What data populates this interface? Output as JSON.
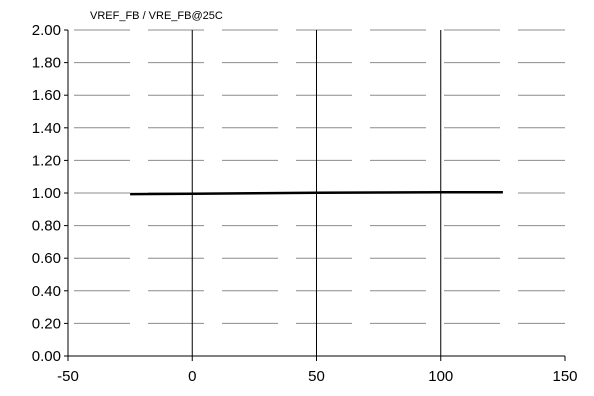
{
  "chart_data": {
    "type": "line",
    "title": "VREF_FB / VRE_FB@25C",
    "xlabel": "",
    "ylabel": "",
    "xlim": [
      -50,
      150
    ],
    "ylim": [
      0,
      2
    ],
    "x_ticks": [
      -50,
      0,
      50,
      100,
      150
    ],
    "x_tick_labels": [
      "-50",
      "0",
      "50",
      "100",
      "150"
    ],
    "y_ticks": [
      0,
      0.2,
      0.4,
      0.6,
      0.8,
      1.0,
      1.2,
      1.4,
      1.6,
      1.8,
      2.0
    ],
    "y_tick_labels": [
      "0.00",
      "0.20",
      "0.40",
      "0.60",
      "0.80",
      "1.00",
      "1.20",
      "1.40",
      "1.60",
      "1.80",
      "2.00"
    ],
    "grid": {
      "horizontal": true,
      "horizontal_style": "dashed-gray",
      "vertical": true,
      "vertical_style": "solid-black"
    },
    "legend": "none",
    "series": [
      {
        "x": [
          -25,
          0,
          25,
          50,
          75,
          100,
          125
        ],
        "y": [
          0.993,
          0.996,
          0.999,
          1.001,
          1.003,
          1.004,
          1.005
        ],
        "color": "#000000"
      }
    ]
  }
}
